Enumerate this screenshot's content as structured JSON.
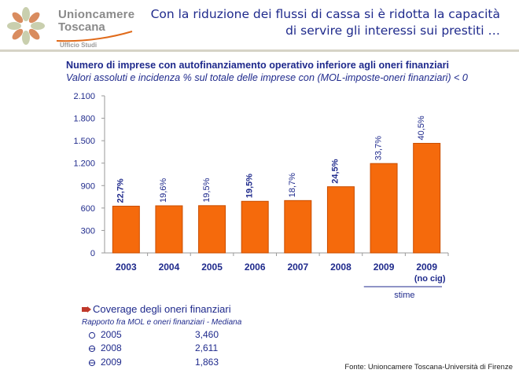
{
  "header": {
    "logo_line1": "Unioncamere",
    "logo_line2": "Toscana",
    "logo_sub": "Ufficio Studi",
    "title": "Con la riduzione dei flussi di cassa si è ridotta la capacità di servire gli interessi sui prestiti …",
    "band_color": "#ffffff"
  },
  "chart_data": {
    "type": "bar",
    "title": "Numero di imprese con autofinanziamento operativo inferiore agli oneri finanziari",
    "subtitle": "Valori assoluti e incidenza % sul totale delle imprese con (MOL-imposte-oneri finanziari) < 0",
    "categories": [
      "2003",
      "2004",
      "2005",
      "2006",
      "2007",
      "2008",
      "2009",
      "2009"
    ],
    "category_sublabels": [
      "",
      "",
      "",
      "",
      "",
      "",
      "",
      "(no cig)"
    ],
    "values": [
      625,
      630,
      632,
      690,
      700,
      885,
      1195,
      1465
    ],
    "data_labels": [
      "22,7%",
      "19,6%",
      "19,5%",
      "19,5%",
      "18,7%",
      "24,5%",
      "33,7%",
      "40,5%"
    ],
    "data_label_bold": [
      true,
      false,
      false,
      true,
      false,
      true,
      false,
      false
    ],
    "ylim": [
      0,
      2100
    ],
    "yticks": [
      0,
      300,
      600,
      900,
      1200,
      1500,
      1800,
      2100
    ],
    "ytick_labels": [
      "0",
      "300",
      "600",
      "900",
      "1.200",
      "1.500",
      "1.800",
      "2.100"
    ],
    "estimate_bracket_label": "stime",
    "bar_color": "#f56a0c",
    "bar_edge_color": "#c94d00",
    "grid": false,
    "legend": "none"
  },
  "coverage": {
    "heading": "Coverage degli oneri finanziari",
    "note": "Rapporto fra MOL e oneri finanziari - Mediana",
    "rows": [
      {
        "year": "2005",
        "value": "3,460"
      },
      {
        "year": "2008",
        "value": "2,611"
      },
      {
        "year": "2009",
        "value": "1,863"
      }
    ]
  },
  "source": "Fonte: Unioncamere Toscana-Università di Firenze"
}
